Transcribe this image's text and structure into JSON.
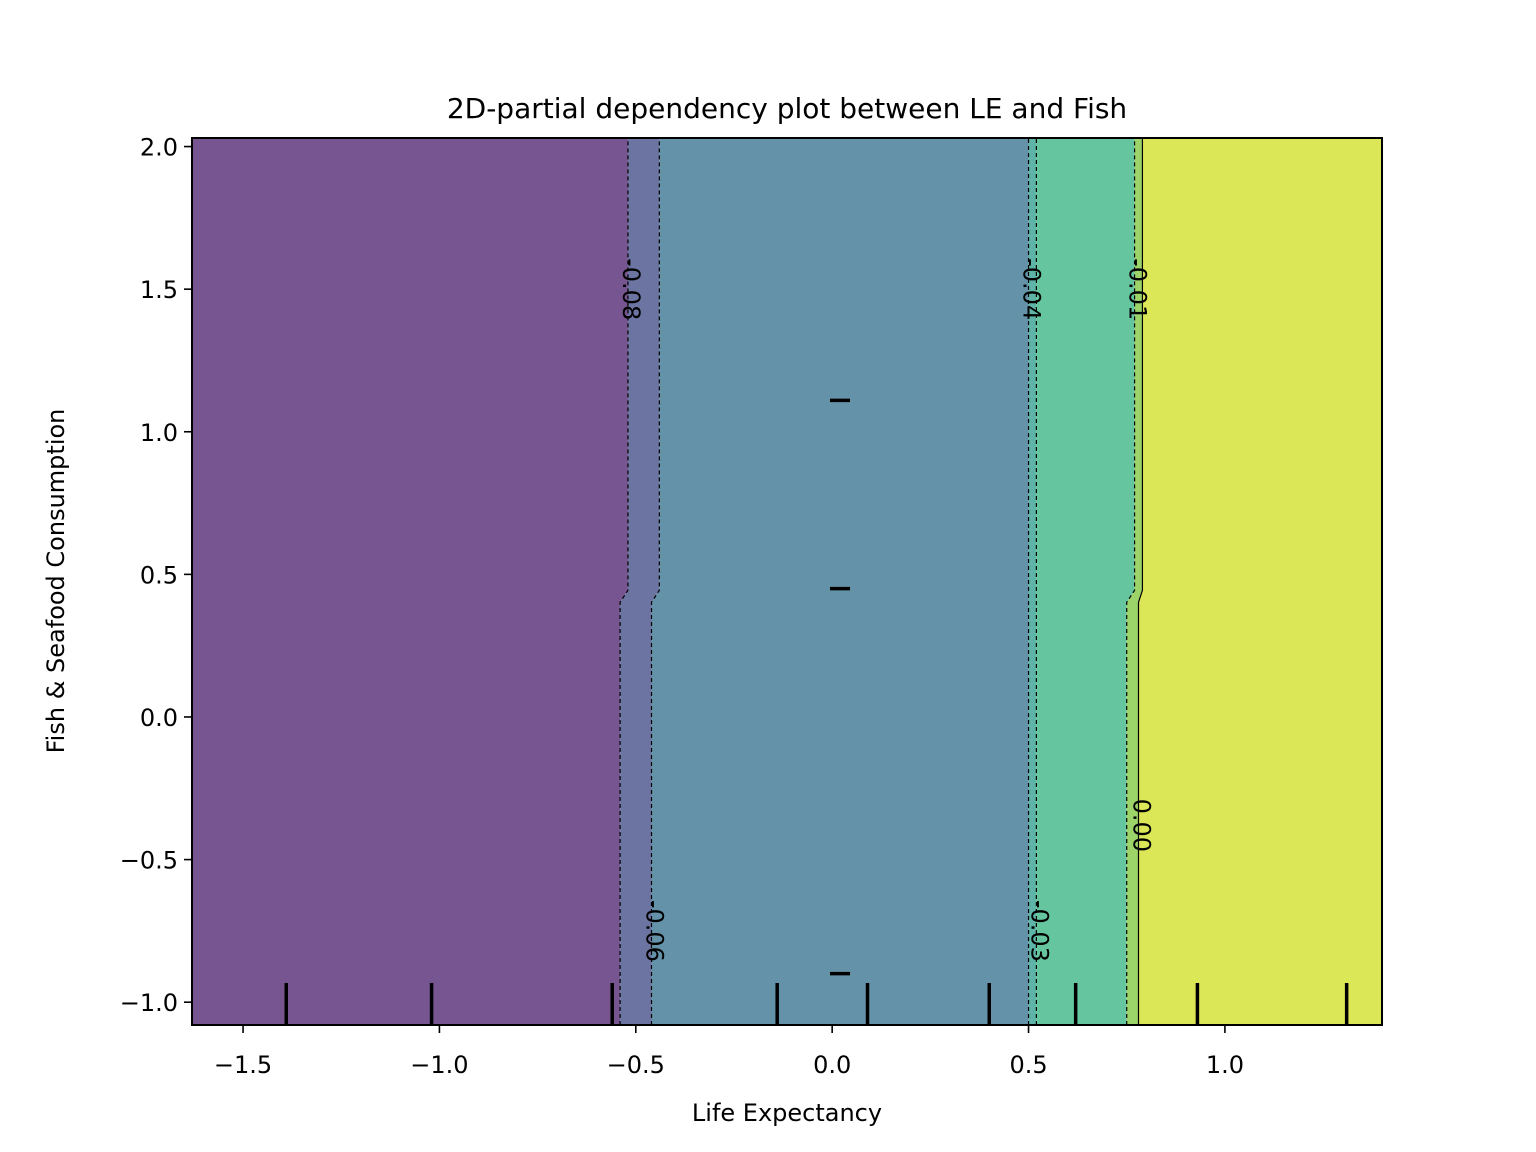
{
  "chart_data": {
    "type": "heatmap",
    "subtype": "filled-contour-partial-dependence",
    "title": "2D-partial dependency plot between LE and Fish",
    "xlabel": "Life Expectancy",
    "ylabel": "Fish & Seafood Consumption",
    "xlim": [
      -1.63,
      1.4
    ],
    "ylim": [
      -1.08,
      2.03
    ],
    "x_ticks": [
      -1.5,
      -1.0,
      -0.5,
      0.0,
      0.5,
      1.0
    ],
    "x_tick_labels": [
      "−1.5",
      "−1.0",
      "−0.5",
      "0.0",
      "0.5",
      "1.0"
    ],
    "y_ticks": [
      -1.0,
      -0.5,
      0.0,
      0.5,
      1.0,
      1.5,
      2.0
    ],
    "y_tick_labels": [
      "−1.0",
      "−0.5",
      "0.0",
      "0.5",
      "1.0",
      "1.5",
      "2.0"
    ],
    "grid": false,
    "contour_levels": [
      {
        "value": -0.08,
        "label": "-0.08",
        "x_low": -0.54,
        "x_high": -0.52,
        "label_y": 1.5
      },
      {
        "value": -0.06,
        "label": "-0.06",
        "x_low": -0.46,
        "x_high": -0.44,
        "label_y": -0.75
      },
      {
        "value": -0.04,
        "label": "-0.04",
        "x_low": 0.5,
        "x_high": 0.5,
        "label_y": 1.5
      },
      {
        "value": -0.03,
        "label": "-0.03",
        "x_low": 0.52,
        "x_high": 0.52,
        "label_y": -0.75
      },
      {
        "value": -0.01,
        "label": "-0.01",
        "x_low": 0.75,
        "x_high": 0.77,
        "label_y": 1.5
      },
      {
        "value": 0.0,
        "label": "0.00",
        "x_low": 0.78,
        "x_high": 0.79,
        "label_y": -0.38
      }
    ],
    "step_y": 0.43,
    "regions": [
      {
        "x_from_level": null,
        "x_to_level": 0,
        "color": "#765591"
      },
      {
        "x_from_level": 0,
        "x_to_level": 1,
        "color": "#6c74a2"
      },
      {
        "x_from_level": 1,
        "x_to_level": 2,
        "color": "#6493a9"
      },
      {
        "x_from_level": 2,
        "x_to_level": 3,
        "color": "#5fb4a8"
      },
      {
        "x_from_level": 3,
        "x_to_level": 4,
        "color": "#64c59e"
      },
      {
        "x_from_level": 4,
        "x_to_level": 5,
        "color": "#9dd46a"
      },
      {
        "x_from_level": 5,
        "x_to_level": null,
        "color": "#dbe756"
      }
    ],
    "x_rug": [
      -1.39,
      -1.02,
      -0.56,
      -0.14,
      0.09,
      0.4,
      0.62,
      0.93,
      1.31
    ],
    "y_rug": [
      1.11,
      0.45,
      -0.9
    ]
  }
}
